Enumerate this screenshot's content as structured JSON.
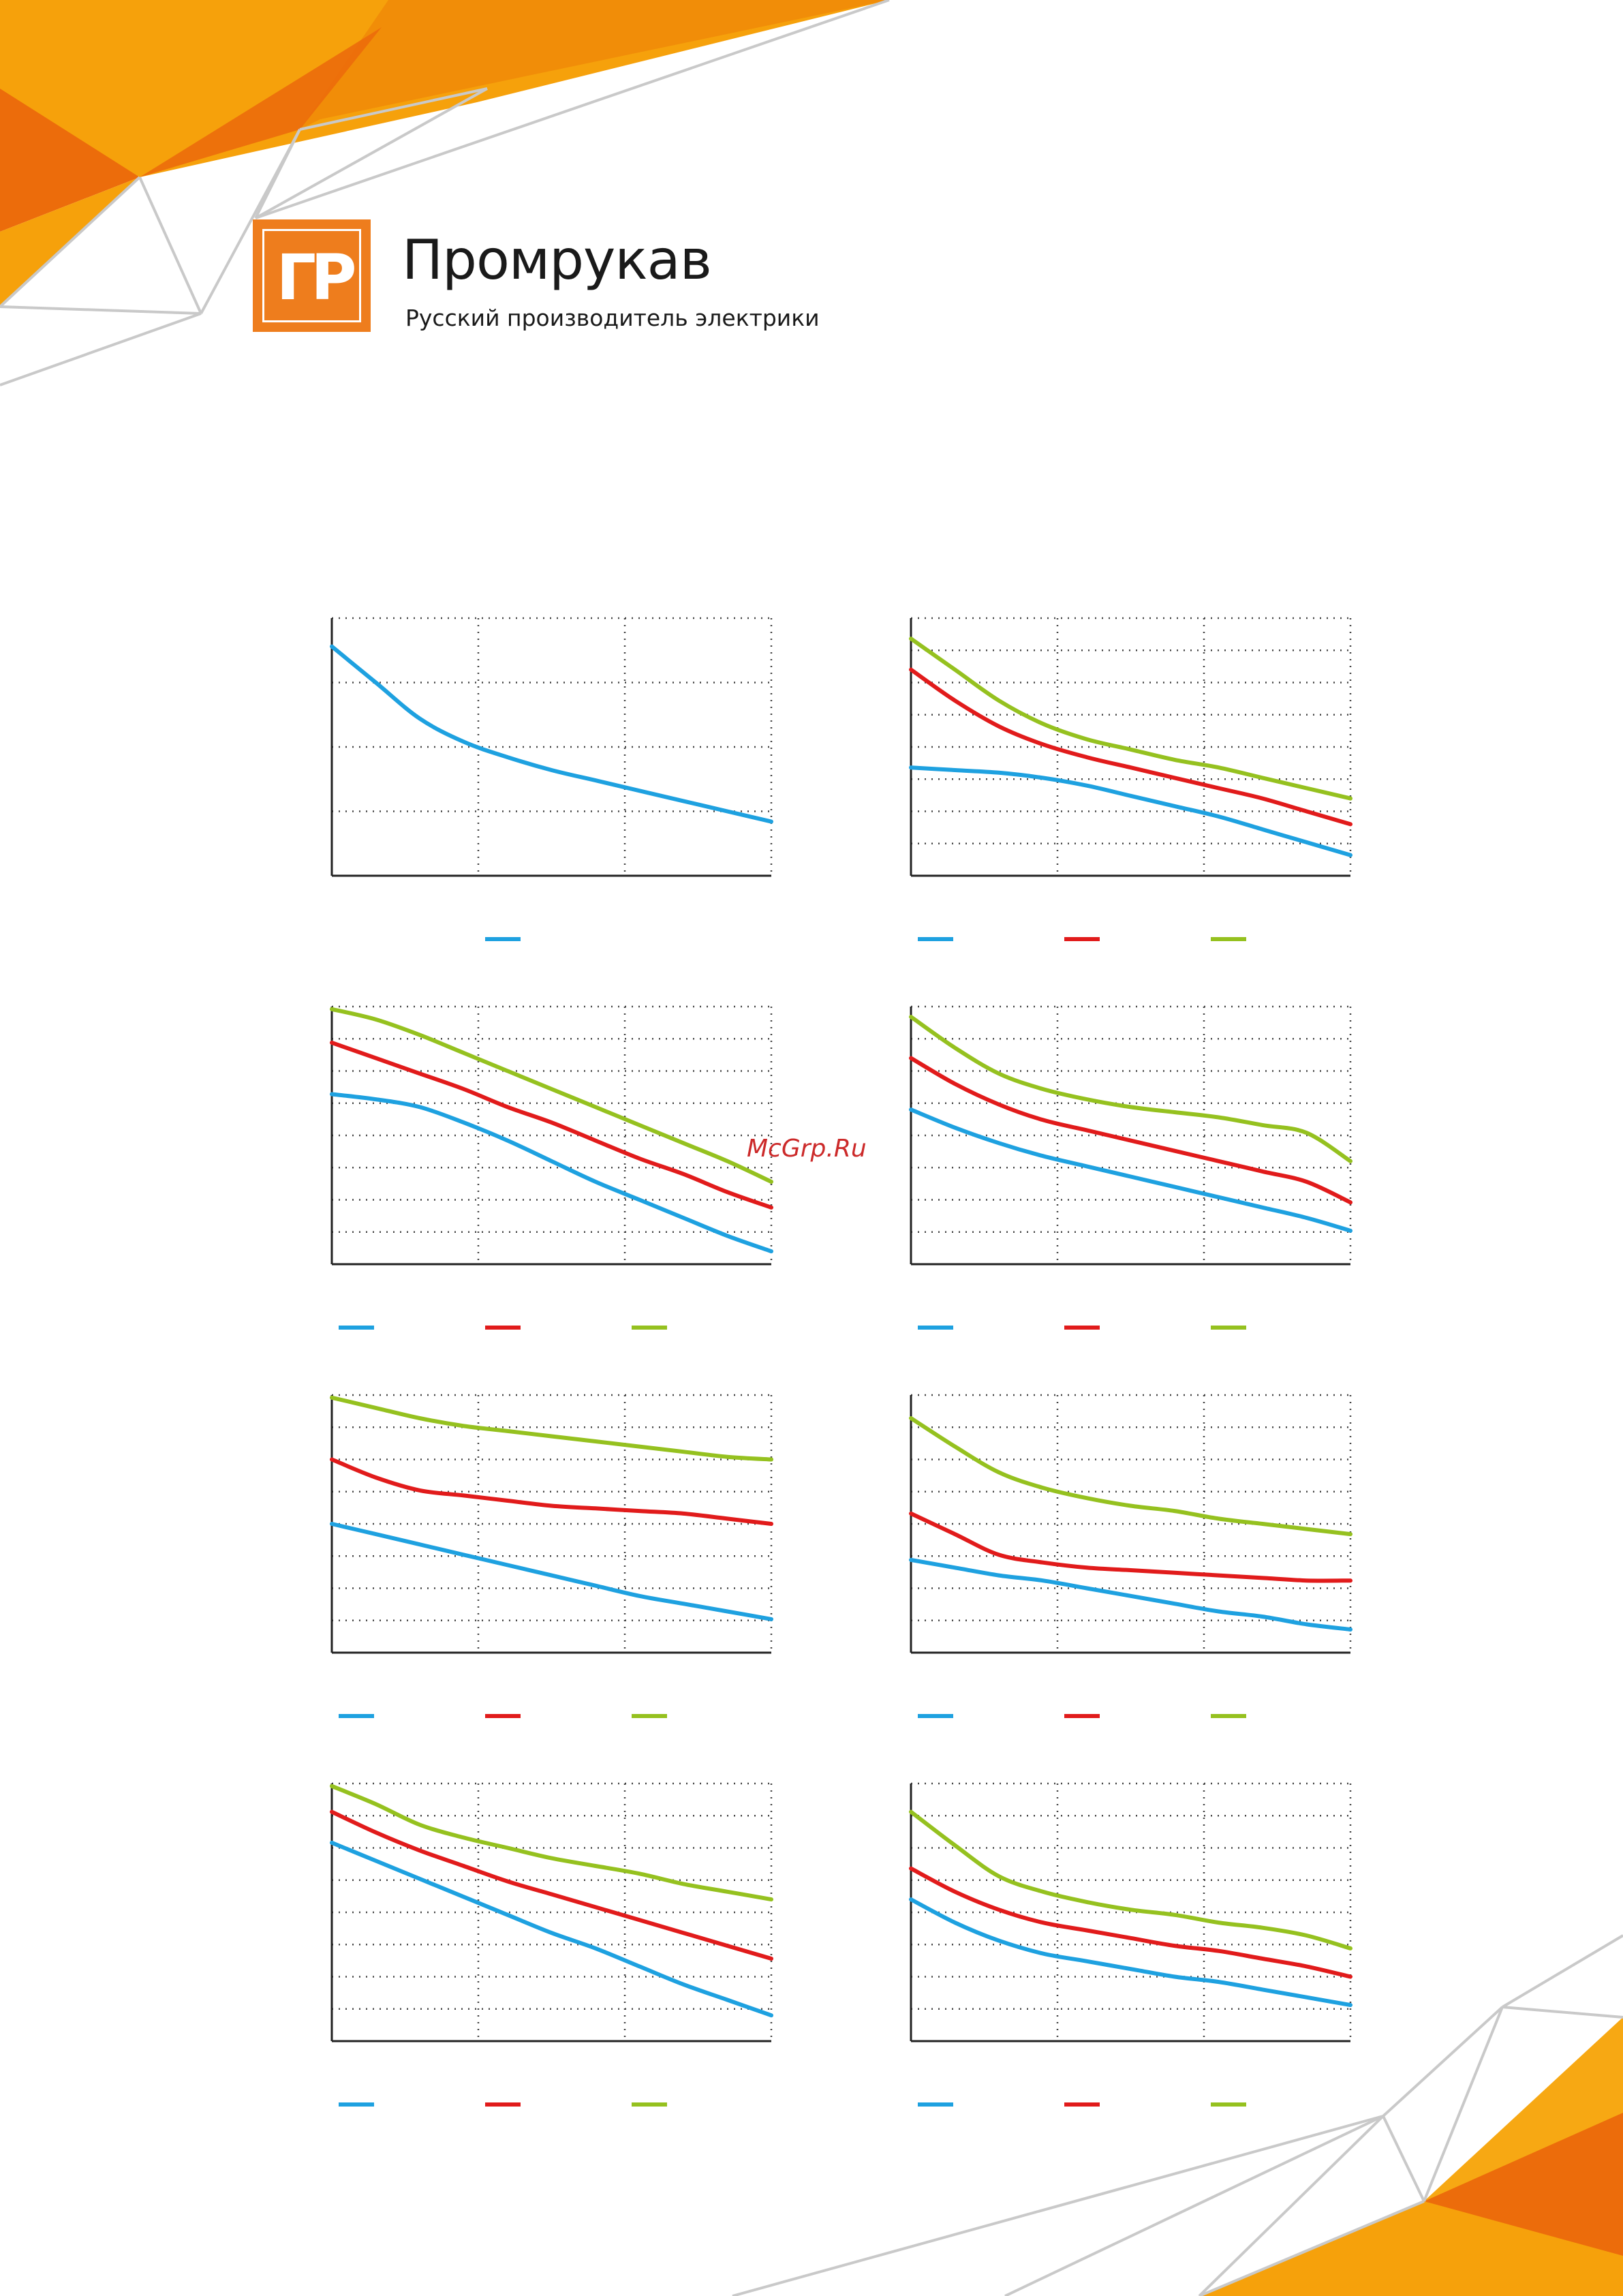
{
  "header": {
    "logo_letters": "ГР",
    "brand_name": "Промрукав",
    "tagline": "Русский производитель электрики"
  },
  "watermark": "McGrp.Ru",
  "colors": {
    "accent_orange": "#ee7d1d",
    "accent_yellow": "#f6a10b",
    "blue": "#1ea1e0",
    "red": "#e11b1b",
    "green": "#95c11f",
    "grid": "#444444",
    "deco_lines": "#c9c9c9"
  },
  "chart_data": [
    {
      "type": "line",
      "x": [
        0,
        0.1,
        0.2,
        0.3,
        0.4,
        0.5,
        0.6,
        0.7,
        0.8,
        0.9,
        1.0
      ],
      "xlim": [
        0,
        1
      ],
      "ylim": [
        0,
        1
      ],
      "grid": true,
      "legend": "bottom",
      "series": [
        {
          "color": "#1ea1e0",
          "values": [
            0.89,
            0.75,
            0.61,
            0.52,
            0.46,
            0.41,
            0.37,
            0.33,
            0.29,
            0.25,
            0.21
          ]
        }
      ]
    },
    {
      "type": "line",
      "x": [
        0,
        0.1,
        0.2,
        0.3,
        0.4,
        0.5,
        0.6,
        0.7,
        0.8,
        0.9,
        1.0
      ],
      "xlim": [
        0,
        1
      ],
      "ylim": [
        0,
        1
      ],
      "grid": true,
      "legend": "bottom",
      "series": [
        {
          "color": "#1ea1e0",
          "values": [
            0.42,
            0.41,
            0.4,
            0.38,
            0.35,
            0.31,
            0.27,
            0.23,
            0.18,
            0.13,
            0.08
          ]
        },
        {
          "color": "#e11b1b",
          "values": [
            0.8,
            0.68,
            0.58,
            0.51,
            0.46,
            0.42,
            0.38,
            0.34,
            0.3,
            0.25,
            0.2
          ]
        },
        {
          "color": "#95c11f",
          "values": [
            0.92,
            0.8,
            0.68,
            0.59,
            0.53,
            0.49,
            0.45,
            0.42,
            0.38,
            0.34,
            0.3
          ]
        }
      ]
    },
    {
      "type": "line",
      "x": [
        0,
        0.1,
        0.2,
        0.3,
        0.4,
        0.5,
        0.6,
        0.7,
        0.8,
        0.9,
        1.0
      ],
      "xlim": [
        0,
        1
      ],
      "ylim": [
        0,
        1
      ],
      "grid": true,
      "legend": "bottom",
      "series": [
        {
          "color": "#1ea1e0",
          "values": [
            0.66,
            0.64,
            0.61,
            0.55,
            0.48,
            0.4,
            0.32,
            0.25,
            0.18,
            0.11,
            0.05
          ]
        },
        {
          "color": "#e11b1b",
          "values": [
            0.86,
            0.8,
            0.74,
            0.68,
            0.61,
            0.55,
            0.48,
            0.41,
            0.35,
            0.28,
            0.22
          ]
        },
        {
          "color": "#95c11f",
          "values": [
            0.99,
            0.95,
            0.89,
            0.82,
            0.75,
            0.68,
            0.61,
            0.54,
            0.47,
            0.4,
            0.32
          ]
        }
      ]
    },
    {
      "type": "line",
      "x": [
        0,
        0.1,
        0.2,
        0.3,
        0.4,
        0.5,
        0.6,
        0.7,
        0.8,
        0.9,
        1.0
      ],
      "xlim": [
        0,
        1
      ],
      "ylim": [
        0,
        1
      ],
      "grid": true,
      "legend": "bottom",
      "series": [
        {
          "color": "#1ea1e0",
          "values": [
            0.6,
            0.53,
            0.47,
            0.42,
            0.38,
            0.34,
            0.3,
            0.26,
            0.22,
            0.18,
            0.13
          ]
        },
        {
          "color": "#e11b1b",
          "values": [
            0.8,
            0.7,
            0.62,
            0.56,
            0.52,
            0.48,
            0.44,
            0.4,
            0.36,
            0.32,
            0.24
          ]
        },
        {
          "color": "#95c11f",
          "values": [
            0.96,
            0.84,
            0.74,
            0.68,
            0.64,
            0.61,
            0.59,
            0.57,
            0.54,
            0.51,
            0.4
          ]
        }
      ]
    },
    {
      "type": "line",
      "x": [
        0,
        0.1,
        0.2,
        0.3,
        0.4,
        0.5,
        0.6,
        0.7,
        0.8,
        0.9,
        1.0
      ],
      "xlim": [
        0,
        1
      ],
      "ylim": [
        0,
        1
      ],
      "grid": true,
      "legend": "bottom",
      "series": [
        {
          "color": "#1ea1e0",
          "values": [
            0.5,
            0.46,
            0.42,
            0.38,
            0.34,
            0.3,
            0.26,
            0.22,
            0.19,
            0.16,
            0.13
          ]
        },
        {
          "color": "#e11b1b",
          "values": [
            0.75,
            0.68,
            0.63,
            0.61,
            0.59,
            0.57,
            0.56,
            0.55,
            0.54,
            0.52,
            0.5
          ]
        },
        {
          "color": "#95c11f",
          "values": [
            0.99,
            0.95,
            0.91,
            0.88,
            0.86,
            0.84,
            0.82,
            0.8,
            0.78,
            0.76,
            0.75
          ]
        }
      ]
    },
    {
      "type": "line",
      "x": [
        0,
        0.1,
        0.2,
        0.3,
        0.4,
        0.5,
        0.6,
        0.7,
        0.8,
        0.9,
        1.0
      ],
      "xlim": [
        0,
        1
      ],
      "ylim": [
        0,
        1
      ],
      "grid": true,
      "legend": "bottom",
      "series": [
        {
          "color": "#1ea1e0",
          "values": [
            0.36,
            0.33,
            0.3,
            0.28,
            0.25,
            0.22,
            0.19,
            0.16,
            0.14,
            0.11,
            0.09
          ]
        },
        {
          "color": "#e11b1b",
          "values": [
            0.54,
            0.46,
            0.38,
            0.35,
            0.33,
            0.32,
            0.31,
            0.3,
            0.29,
            0.28,
            0.28
          ]
        },
        {
          "color": "#95c11f",
          "values": [
            0.91,
            0.8,
            0.7,
            0.64,
            0.6,
            0.57,
            0.55,
            0.52,
            0.5,
            0.48,
            0.46
          ]
        }
      ]
    },
    {
      "type": "line",
      "x": [
        0,
        0.1,
        0.2,
        0.3,
        0.4,
        0.5,
        0.6,
        0.7,
        0.8,
        0.9,
        1.0
      ],
      "xlim": [
        0,
        1
      ],
      "ylim": [
        0,
        1
      ],
      "grid": true,
      "legend": "bottom",
      "series": [
        {
          "color": "#1ea1e0",
          "values": [
            0.77,
            0.7,
            0.63,
            0.56,
            0.49,
            0.42,
            0.36,
            0.29,
            0.22,
            0.16,
            0.1
          ]
        },
        {
          "color": "#e11b1b",
          "values": [
            0.89,
            0.81,
            0.74,
            0.68,
            0.62,
            0.57,
            0.52,
            0.47,
            0.42,
            0.37,
            0.32
          ]
        },
        {
          "color": "#95c11f",
          "values": [
            0.99,
            0.92,
            0.84,
            0.79,
            0.75,
            0.71,
            0.68,
            0.65,
            0.61,
            0.58,
            0.55
          ]
        }
      ]
    },
    {
      "type": "line",
      "x": [
        0,
        0.1,
        0.2,
        0.3,
        0.4,
        0.5,
        0.6,
        0.7,
        0.8,
        0.9,
        1.0
      ],
      "xlim": [
        0,
        1
      ],
      "ylim": [
        0,
        1
      ],
      "grid": true,
      "legend": "bottom",
      "series": [
        {
          "color": "#1ea1e0",
          "values": [
            0.55,
            0.46,
            0.39,
            0.34,
            0.31,
            0.28,
            0.25,
            0.23,
            0.2,
            0.17,
            0.14
          ]
        },
        {
          "color": "#e11b1b",
          "values": [
            0.67,
            0.58,
            0.51,
            0.46,
            0.43,
            0.4,
            0.37,
            0.35,
            0.32,
            0.29,
            0.25
          ]
        },
        {
          "color": "#95c11f",
          "values": [
            0.89,
            0.76,
            0.64,
            0.58,
            0.54,
            0.51,
            0.49,
            0.46,
            0.44,
            0.41,
            0.36
          ]
        }
      ]
    }
  ]
}
